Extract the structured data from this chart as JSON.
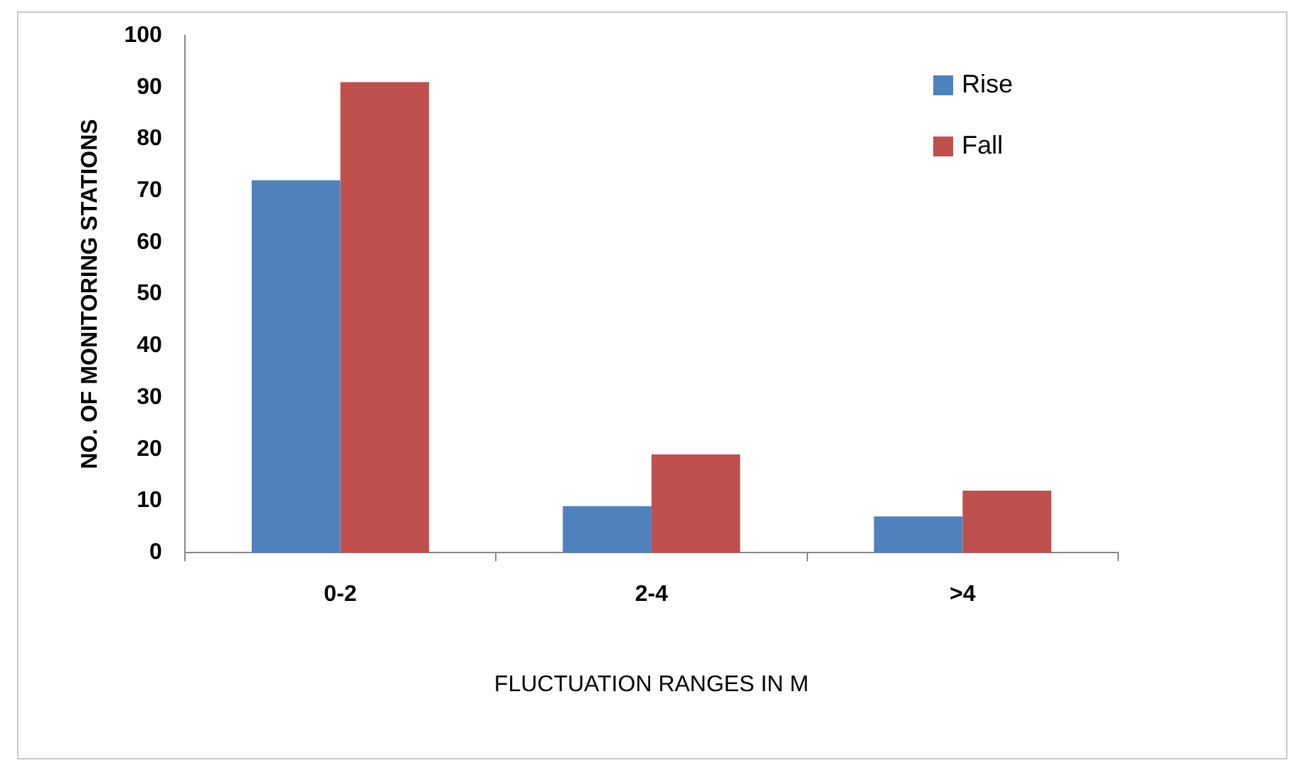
{
  "chart_data": {
    "type": "bar",
    "xlabel": "FLUCTUATION RANGES IN M",
    "ylabel": "NO. OF MONITORING STATIONS",
    "categories": [
      "0-2",
      "2-4",
      ">4"
    ],
    "series": [
      {
        "name": "Rise",
        "color": "#4f81bd",
        "values": [
          72,
          9,
          7
        ]
      },
      {
        "name": "Fall",
        "color": "#c0504d",
        "values": [
          91,
          19,
          12
        ]
      }
    ],
    "ylim": [
      0,
      100
    ],
    "yticks": [
      0,
      10,
      20,
      30,
      40,
      50,
      60,
      70,
      80,
      90,
      100
    ],
    "grid": false,
    "legend": "top right"
  }
}
